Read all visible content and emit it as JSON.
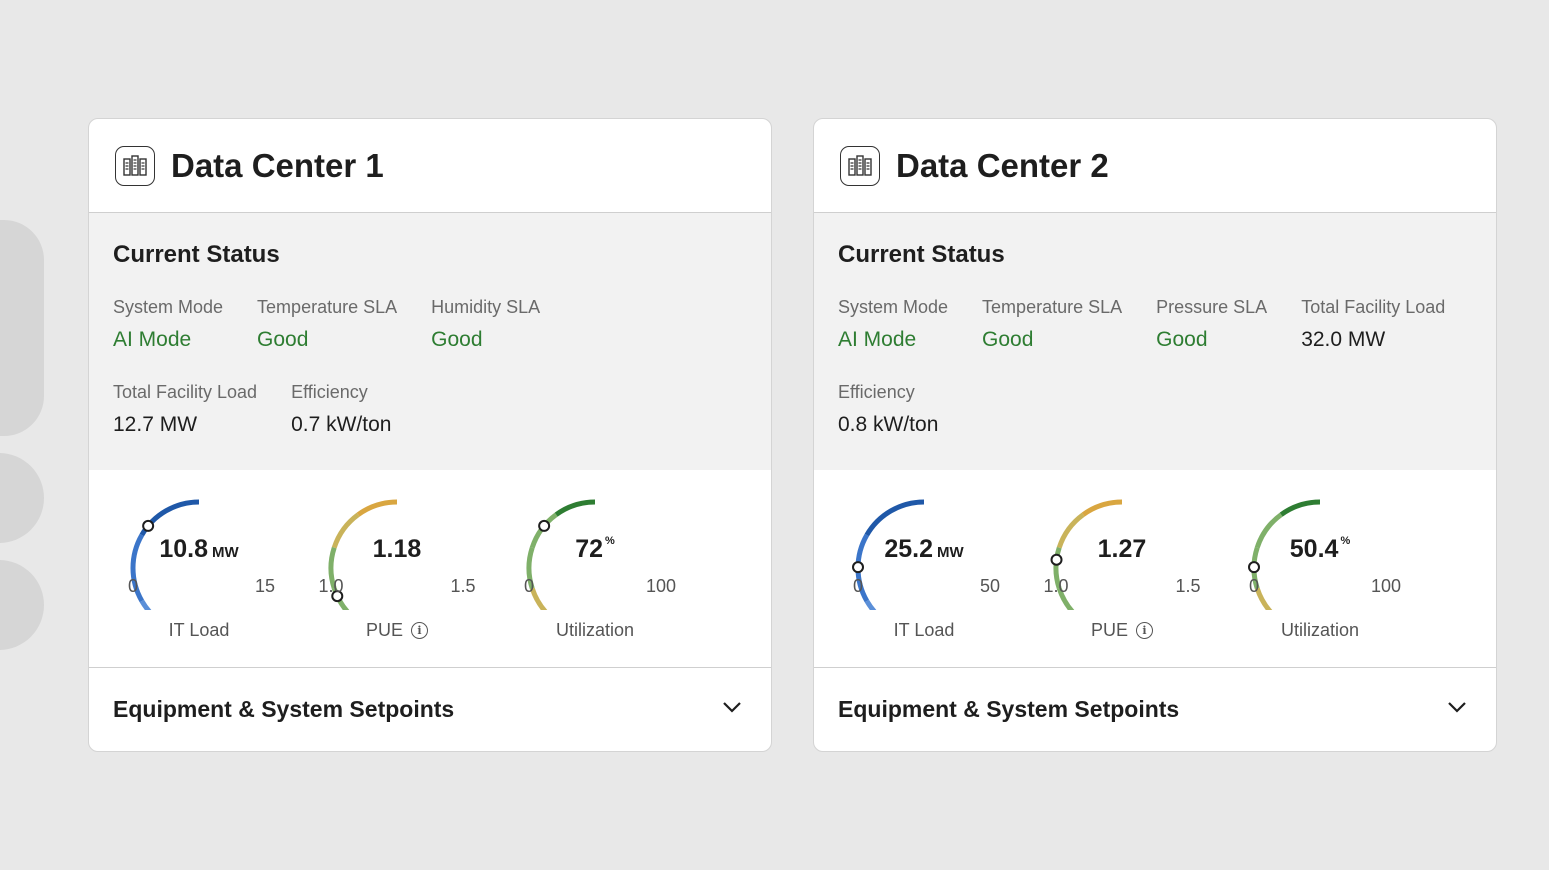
{
  "colors": {
    "good": "#2e7d32",
    "it_load_arc": [
      "#5b8fd8",
      "#3b75c9",
      "#1f58a8"
    ],
    "gauge_scale": [
      "#2e7d32",
      "#7fb069",
      "#c9b35a",
      "#d9a640"
    ]
  },
  "cards": [
    {
      "title": "Data Center 1",
      "icon": "server-rack-icon",
      "status": {
        "heading": "Current Status",
        "row1": [
          {
            "label": "System Mode",
            "value": "AI Mode",
            "good": true
          },
          {
            "label": "Temperature SLA",
            "value": "Good",
            "good": true
          },
          {
            "label": "Humidity SLA",
            "value": "Good",
            "good": true
          }
        ],
        "row2": [
          {
            "label": "Total Facility Load",
            "value": "12.7 MW",
            "good": false
          },
          {
            "label": "Efficiency",
            "value": "0.7 kW/ton",
            "good": false
          }
        ]
      },
      "gauges": [
        {
          "kind": "itload",
          "value": 10.8,
          "display": "10.8",
          "unit": "MW",
          "min": 0,
          "max": 15,
          "min_label": "0",
          "max_label": "15",
          "label": "IT Load",
          "info": false
        },
        {
          "kind": "pue",
          "value": 1.18,
          "display": "1.18",
          "unit": "",
          "min": 1.0,
          "max": 1.5,
          "min_label": "1.0",
          "max_label": "1.5",
          "label": "PUE",
          "info": true
        },
        {
          "kind": "util",
          "value": 72,
          "display": "72",
          "unit": "%",
          "min": 0,
          "max": 100,
          "min_label": "0",
          "max_label": "100",
          "label": "Utilization",
          "info": false
        }
      ],
      "setpoints_title": "Equipment & System Setpoints"
    },
    {
      "title": "Data Center 2",
      "icon": "server-rack-icon",
      "status": {
        "heading": "Current Status",
        "row1": [
          {
            "label": "System Mode",
            "value": "AI Mode",
            "good": true
          },
          {
            "label": "Temperature SLA",
            "value": "Good",
            "good": true
          },
          {
            "label": "Pressure SLA",
            "value": "Good",
            "good": true
          },
          {
            "label": "Total Facility Load",
            "value": "32.0 MW",
            "good": false
          }
        ],
        "row2": [
          {
            "label": "Efficiency",
            "value": "0.8 kW/ton",
            "good": false
          }
        ]
      },
      "gauges": [
        {
          "kind": "itload",
          "value": 25.2,
          "display": "25.2",
          "unit": "MW",
          "min": 0,
          "max": 50,
          "min_label": "0",
          "max_label": "50",
          "label": "IT Load",
          "info": false
        },
        {
          "kind": "pue",
          "value": 1.27,
          "display": "1.27",
          "unit": "",
          "min": 1.0,
          "max": 1.5,
          "min_label": "1.0",
          "max_label": "1.5",
          "label": "PUE",
          "info": true
        },
        {
          "kind": "util",
          "value": 50.4,
          "display": "50.4",
          "unit": "%",
          "min": 0,
          "max": 100,
          "min_label": "0",
          "max_label": "100",
          "label": "Utilization",
          "info": false
        }
      ],
      "setpoints_title": "Equipment & System Setpoints"
    }
  ]
}
